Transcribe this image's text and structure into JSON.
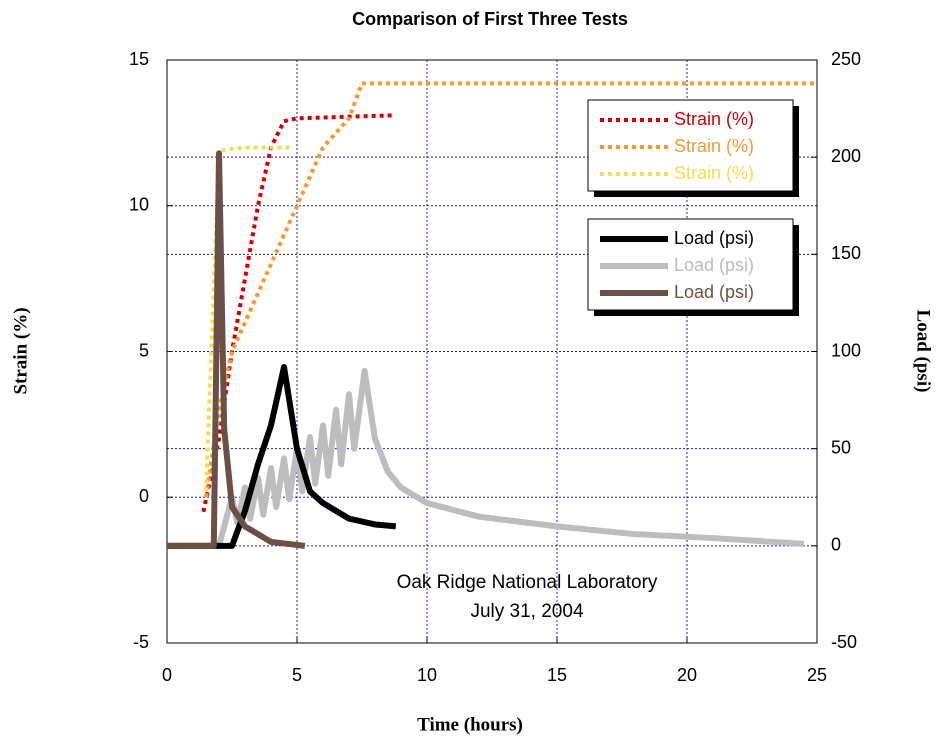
{
  "chart_data": {
    "type": "line",
    "title": "Comparison of First Three Tests",
    "x_label": "Time (hours)",
    "y_label": "Strain (%)",
    "y2_label": "Load (psi)",
    "annotations": [
      "Oak Ridge National Laboratory",
      "July 31, 2004"
    ],
    "xlim": [
      0,
      25
    ],
    "xticks": [
      0,
      5,
      10,
      15,
      20,
      25
    ],
    "ylim": [
      -5,
      15
    ],
    "yticks": [
      -5,
      0,
      5,
      10,
      15
    ],
    "y2lim": [
      -50,
      250
    ],
    "y2ticks": [
      -50,
      0,
      50,
      100,
      150,
      200,
      250
    ],
    "grid": true,
    "legend_position": "upper right",
    "series": [
      {
        "name": "Strain (%)",
        "color": "#d40000",
        "style": "dotted",
        "x": [
          1.4,
          2,
          2.5,
          3,
          3.5,
          4,
          4.5,
          5,
          8.7
        ],
        "values": [
          -0.5,
          2,
          5,
          7.5,
          10,
          12,
          12.9,
          13,
          13.1
        ]
      },
      {
        "name": "Strain (%)",
        "color": "#f59a2e",
        "style": "dotted",
        "x": [
          1.5,
          2,
          2.5,
          3,
          3.5,
          4,
          5,
          6,
          7,
          7.5,
          25
        ],
        "values": [
          0,
          3,
          5,
          6,
          7,
          8,
          10,
          12,
          13,
          14.2,
          14.2
        ]
      },
      {
        "name": "Strain (%)",
        "color": "#f3df4c",
        "style": "dotted",
        "x": [
          1.5,
          2,
          3,
          4.7
        ],
        "values": [
          0.2,
          11.9,
          12,
          12
        ]
      },
      {
        "name": "Load (psi)",
        "color": "#000000",
        "style": "solid",
        "axis": "y2",
        "x": [
          0,
          2.5,
          3,
          3.5,
          4,
          4.5,
          5,
          5.5,
          6,
          7,
          8,
          8.8
        ],
        "values": [
          0,
          0,
          18,
          42,
          62,
          92,
          50,
          28,
          22,
          14,
          11,
          10
        ]
      },
      {
        "name": "Load (psi)",
        "color": "#bdbdbd",
        "style": "solid",
        "axis": "y2",
        "x": [
          0,
          2,
          2.2,
          2.5,
          2.7,
          3,
          3.2,
          3.5,
          3.7,
          4,
          4.2,
          4.5,
          4.7,
          5,
          5.2,
          5.5,
          5.7,
          6,
          6.2,
          6.5,
          6.7,
          7,
          7.2,
          7.6,
          8,
          8.5,
          9,
          10,
          12,
          15,
          18,
          21,
          24.5
        ],
        "values": [
          0,
          0,
          10,
          25,
          12,
          30,
          14,
          35,
          16,
          40,
          20,
          45,
          24,
          50,
          28,
          56,
          32,
          62,
          36,
          70,
          42,
          78,
          50,
          90,
          55,
          38,
          30,
          22,
          15,
          10,
          6,
          4,
          1
        ]
      },
      {
        "name": "Load (psi)",
        "color": "#6b5048",
        "style": "solid",
        "axis": "y2",
        "x": [
          0,
          1.8,
          2,
          2.2,
          2.5,
          3,
          4,
          5.3
        ],
        "values": [
          0,
          0,
          202,
          60,
          20,
          10,
          2,
          0
        ]
      }
    ]
  }
}
